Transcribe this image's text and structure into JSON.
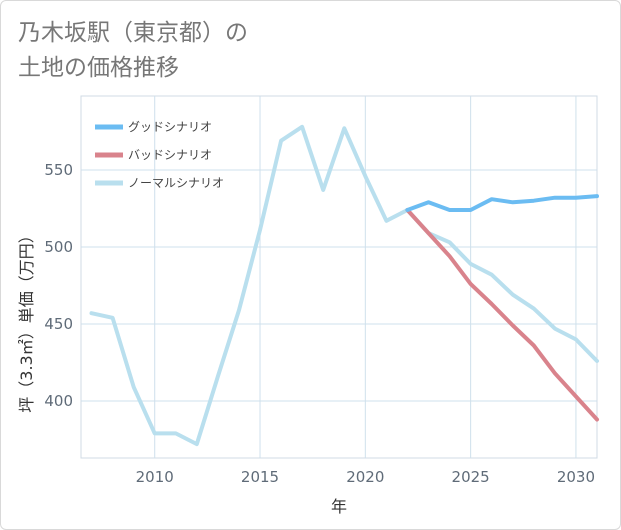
{
  "title": "乃木坂駅（東京都）の\n土地の価格推移",
  "chart_data": {
    "type": "line",
    "xlabel": "年",
    "ylabel": "坪（3.3㎡）単価（万円）",
    "xlim": [
      2006.5,
      2031
    ],
    "ylim": [
      363,
      598
    ],
    "xticks": [
      2010,
      2015,
      2020,
      2025,
      2030
    ],
    "yticks": [
      400,
      450,
      500,
      550
    ],
    "legend_position": "top-left",
    "series": [
      {
        "name": "グッドシナリオ",
        "color": "#6bbcf2",
        "x": [
          2022,
          2023,
          2024,
          2025,
          2026,
          2027,
          2028,
          2029,
          2030,
          2031
        ],
        "values": [
          524,
          529,
          524,
          524,
          531,
          529,
          530,
          532,
          532,
          533
        ]
      },
      {
        "name": "バッドシナリオ",
        "color": "#d9838c",
        "x": [
          2022,
          2023,
          2024,
          2025,
          2026,
          2027,
          2028,
          2029,
          2030,
          2031
        ],
        "values": [
          524,
          509,
          494,
          476,
          463,
          449,
          436,
          418,
          403,
          388
        ]
      },
      {
        "name": "ノーマルシナリオ",
        "color": "#b9dfee",
        "x": [
          2007,
          2008,
          2009,
          2010,
          2011,
          2012,
          2013,
          2014,
          2015,
          2016,
          2017,
          2018,
          2019,
          2020,
          2021,
          2022,
          2023,
          2024,
          2025,
          2026,
          2027,
          2028,
          2029,
          2030,
          2031
        ],
        "values": [
          457,
          454,
          409,
          379,
          379,
          372,
          416,
          459,
          511,
          569,
          578,
          537,
          577,
          546,
          517,
          524,
          509,
          503,
          489,
          482,
          469,
          460,
          447,
          440,
          426
        ]
      }
    ]
  }
}
